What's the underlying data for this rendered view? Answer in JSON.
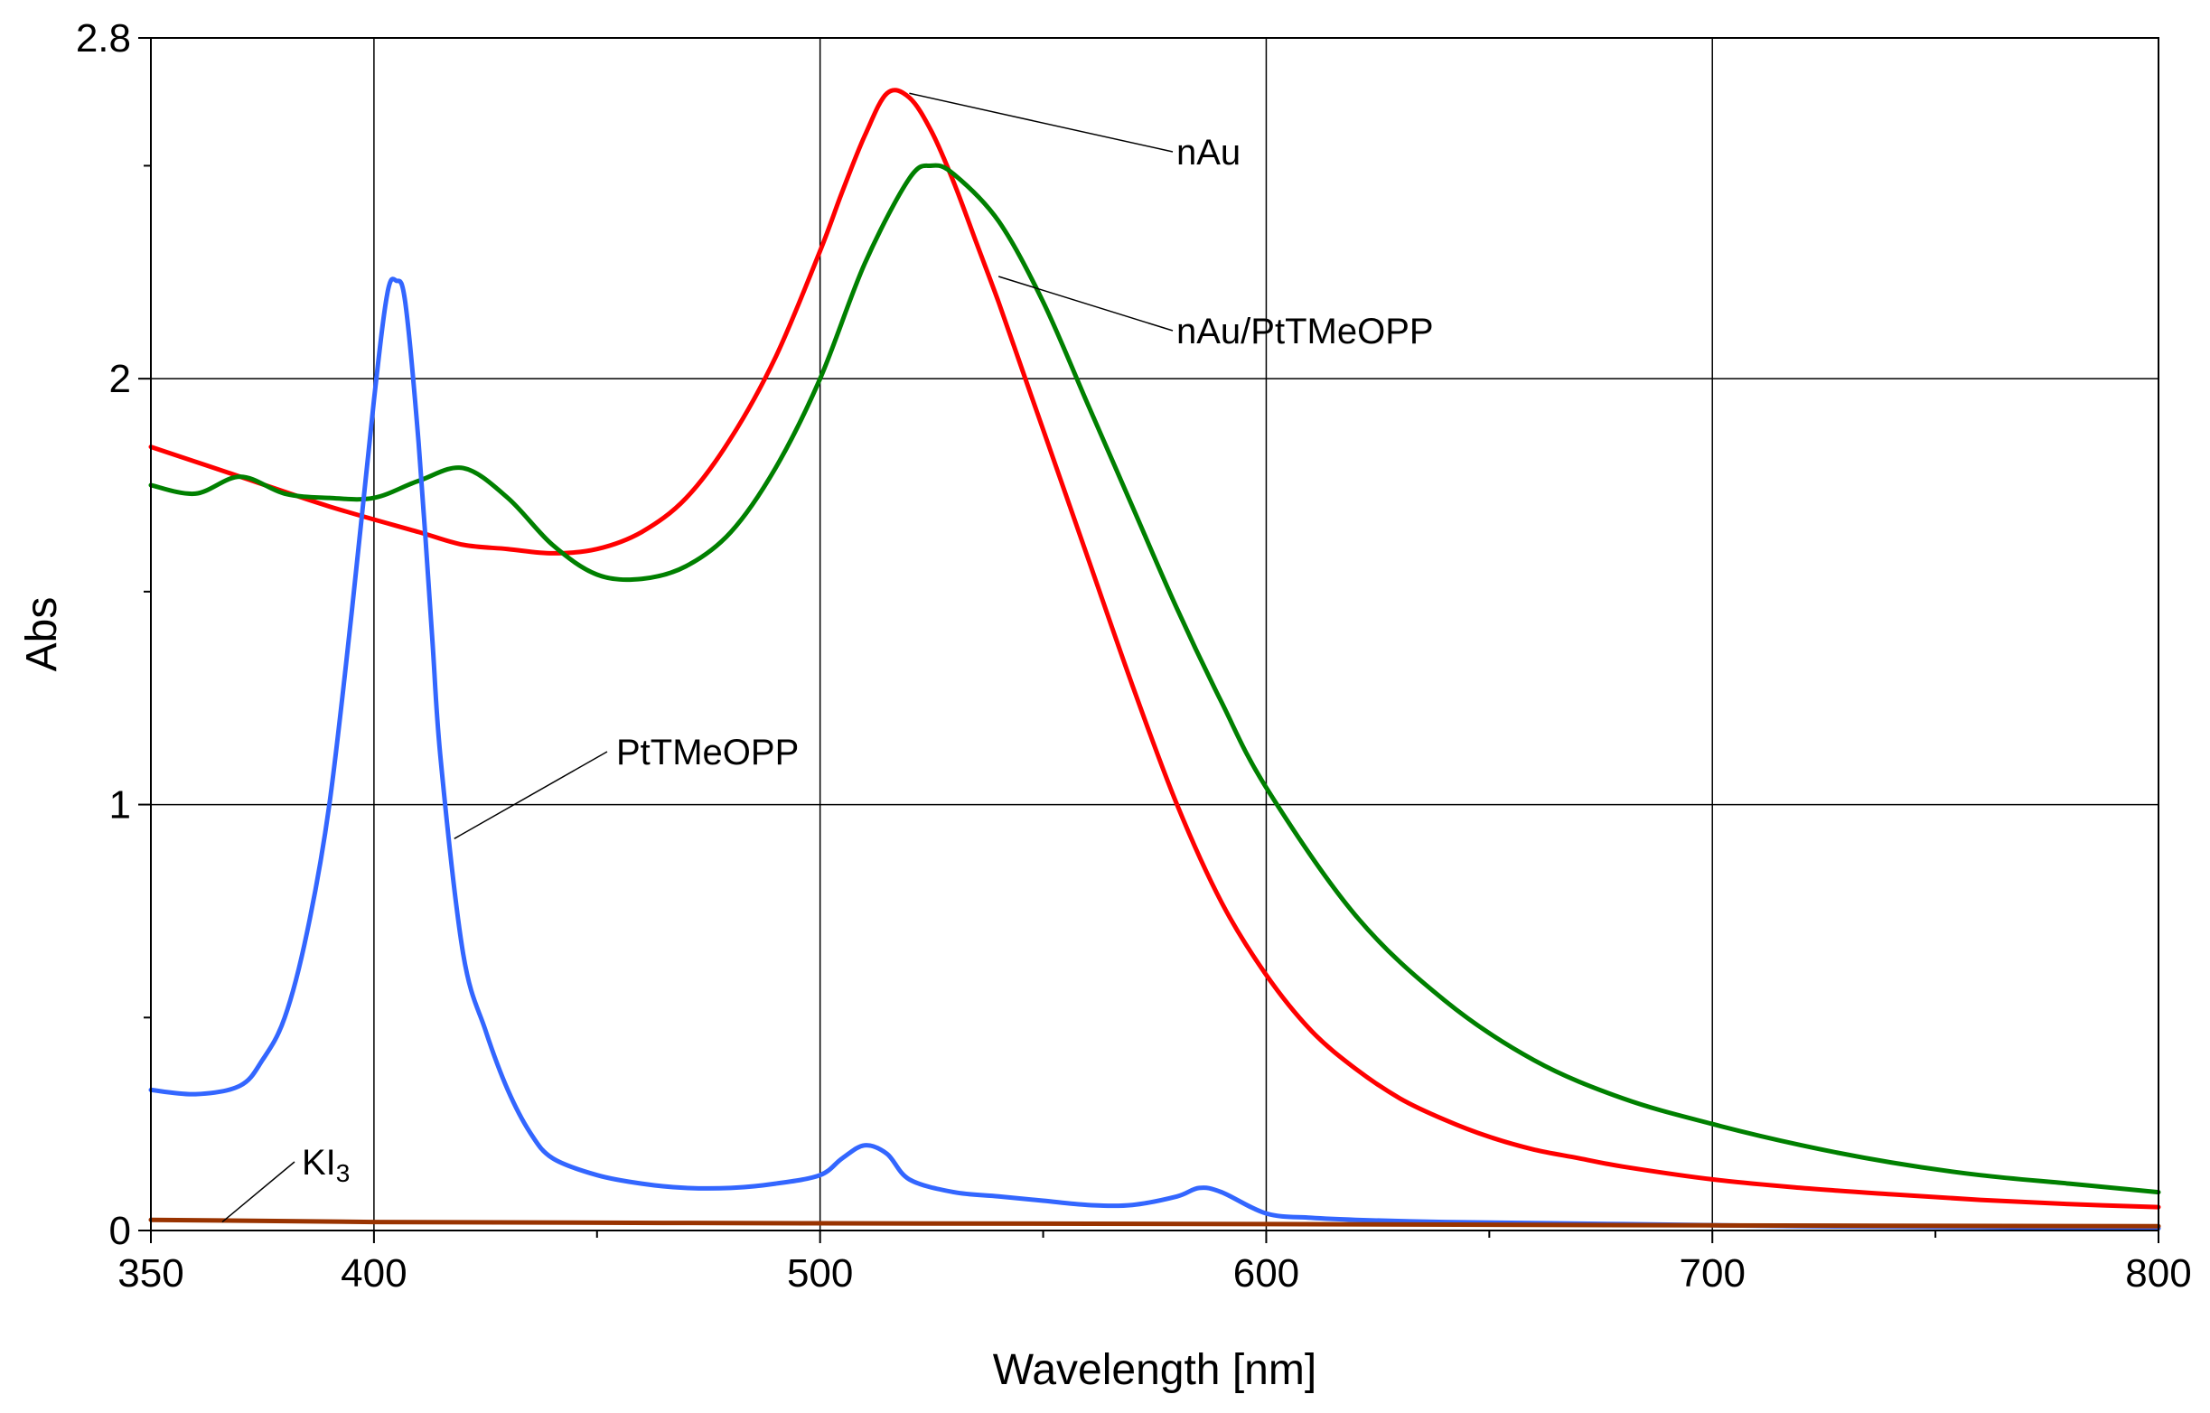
{
  "chart_data": {
    "type": "line",
    "title": "",
    "xlabel": "Wavelength [nm]",
    "ylabel": "Abs",
    "xlim": [
      350,
      800
    ],
    "ylim": [
      0,
      2.8
    ],
    "x_ticks": [
      350,
      400,
      500,
      600,
      700,
      800
    ],
    "x_tick_labels": [
      "350",
      "400",
      "500",
      "600",
      "700",
      "800"
    ],
    "x_minor_ticks": [
      450,
      550,
      650,
      750
    ],
    "y_ticks": [
      0,
      1,
      2,
      2.8
    ],
    "y_tick_labels": [
      "0",
      "1",
      "2",
      "2.8"
    ],
    "y_minor_ticks": [
      0.5,
      1.5,
      2.5
    ],
    "grid": true,
    "series": [
      {
        "name": "nAu",
        "color": "#ff0000",
        "x": [
          350,
          370,
          390,
          410,
          420,
          430,
          440,
          450,
          460,
          470,
          480,
          490,
          500,
          505,
          510,
          515,
          520,
          525,
          530,
          535,
          540,
          545,
          550,
          560,
          570,
          580,
          590,
          600,
          610,
          620,
          630,
          640,
          650,
          660,
          670,
          680,
          700,
          720,
          740,
          760,
          780,
          800
        ],
        "y": [
          1.84,
          1.77,
          1.7,
          1.64,
          1.61,
          1.6,
          1.59,
          1.6,
          1.64,
          1.72,
          1.86,
          2.05,
          2.3,
          2.44,
          2.57,
          2.67,
          2.66,
          2.58,
          2.46,
          2.32,
          2.18,
          2.03,
          1.88,
          1.58,
          1.28,
          1.0,
          0.77,
          0.6,
          0.47,
          0.38,
          0.31,
          0.26,
          0.22,
          0.19,
          0.17,
          0.15,
          0.12,
          0.1,
          0.085,
          0.072,
          0.062,
          0.055
        ]
      },
      {
        "name": "nAu/PtTMeOPP",
        "color": "#008000",
        "x": [
          350,
          360,
          370,
          380,
          390,
          400,
          410,
          420,
          430,
          440,
          450,
          460,
          470,
          480,
          490,
          500,
          510,
          520,
          525,
          530,
          540,
          550,
          560,
          570,
          580,
          590,
          600,
          620,
          640,
          660,
          680,
          700,
          720,
          740,
          760,
          780,
          800
        ],
        "y": [
          1.75,
          1.73,
          1.77,
          1.73,
          1.72,
          1.72,
          1.76,
          1.79,
          1.72,
          1.61,
          1.54,
          1.53,
          1.56,
          1.64,
          1.79,
          2.0,
          2.27,
          2.47,
          2.5,
          2.48,
          2.37,
          2.18,
          1.94,
          1.7,
          1.46,
          1.24,
          1.04,
          0.74,
          0.54,
          0.4,
          0.31,
          0.25,
          0.2,
          0.16,
          0.13,
          0.11,
          0.09
        ]
      },
      {
        "name": "PtTMeOPP",
        "color": "#3366ff",
        "x": [
          350,
          360,
          370,
          375,
          380,
          385,
          390,
          395,
          400,
          403,
          405,
          407,
          410,
          413,
          415,
          420,
          425,
          430,
          435,
          440,
          450,
          460,
          470,
          480,
          490,
          500,
          505,
          510,
          515,
          520,
          530,
          540,
          550,
          560,
          570,
          580,
          585,
          590,
          600,
          610,
          620,
          640,
          680,
          720,
          760,
          800
        ],
        "y": [
          0.33,
          0.32,
          0.34,
          0.4,
          0.5,
          0.7,
          1.0,
          1.45,
          1.95,
          2.2,
          2.23,
          2.18,
          1.85,
          1.4,
          1.1,
          0.65,
          0.47,
          0.33,
          0.23,
          0.17,
          0.13,
          0.11,
          0.1,
          0.1,
          0.11,
          0.13,
          0.17,
          0.2,
          0.18,
          0.12,
          0.09,
          0.08,
          0.07,
          0.06,
          0.06,
          0.08,
          0.1,
          0.09,
          0.04,
          0.03,
          0.025,
          0.02,
          0.015,
          0.01,
          0.008,
          0.005
        ]
      },
      {
        "name": "KI3",
        "color": "#993300",
        "x": [
          350,
          400,
          500,
          600,
          700,
          800
        ],
        "y": [
          0.025,
          0.02,
          0.017,
          0.015,
          0.012,
          0.01
        ]
      }
    ],
    "annotations": [
      {
        "text": "nAu",
        "series": "nAu",
        "x": 520,
        "y": 2.67
      },
      {
        "text": "nAu/PtTMeOPP",
        "series": "nAu/PtTMeOPP",
        "x": 540,
        "y": 2.24
      },
      {
        "text": "PtTMeOPP",
        "series": "PtTMeOPP",
        "x": 418,
        "y": 0.92
      },
      {
        "text": "KI",
        "subscript": "3",
        "series": "KI3",
        "x": 366,
        "y": 0.02
      }
    ]
  }
}
